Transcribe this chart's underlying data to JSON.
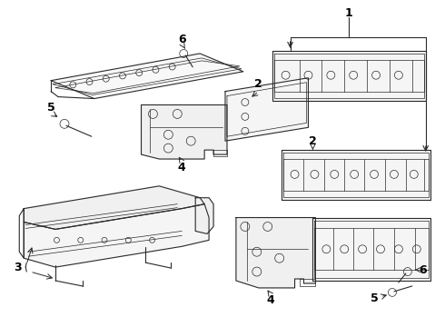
{
  "background_color": "#ffffff",
  "line_color": "#2a2a2a",
  "figure_width": 4.9,
  "figure_height": 3.6,
  "dpi": 100
}
